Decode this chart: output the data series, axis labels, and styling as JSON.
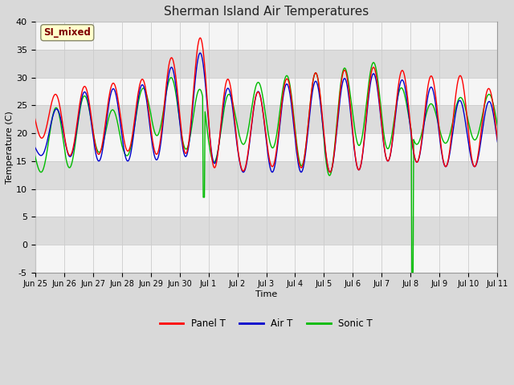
{
  "title": "Sherman Island Air Temperatures",
  "xlabel": "Time",
  "ylabel": "Temperature (C)",
  "ylim": [
    -5,
    40
  ],
  "background_color": "#d9d9d9",
  "plot_bg_color": "#f0f0f0",
  "label_box_text": "SI_mixed",
  "label_box_color": "#ffffcc",
  "label_box_edge": "#aaaaaa",
  "label_text_color": "#800000",
  "line_colors": {
    "panel": "#ff0000",
    "air": "#0000cc",
    "sonic": "#00bb00"
  },
  "legend_labels": [
    "Panel T",
    "Air T",
    "Sonic T"
  ],
  "xtick_labels": [
    "Jun 25",
    "Jun 26",
    "Jun 27",
    "Jun 28",
    "Jun 29",
    "Jun 30",
    "Jul 1",
    "Jul 2",
    "Jul 3",
    "Jul 4",
    "Jul 5",
    "Jul 6",
    "Jul 7",
    "Jul 8",
    "Jul 9",
    "Jul 10",
    "Jul 11"
  ],
  "ytick_values": [
    -5,
    0,
    5,
    10,
    15,
    20,
    25,
    30,
    35,
    40
  ],
  "band_colors": [
    "#f5f5f5",
    "#dcdcdc"
  ]
}
